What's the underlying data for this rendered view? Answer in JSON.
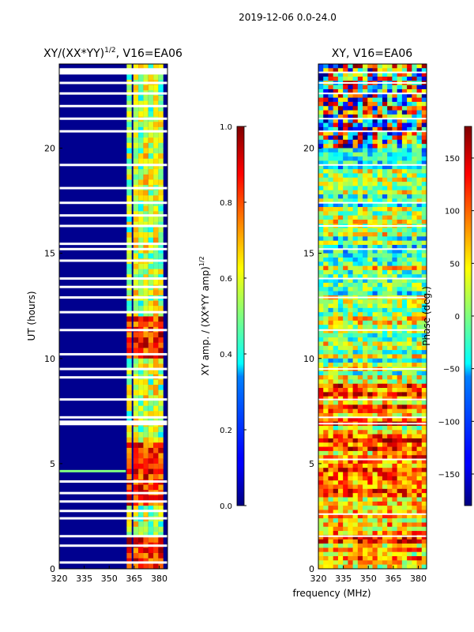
{
  "figure": {
    "suptitle": "2019-12-06 0.0-24.0",
    "xlabel": "frequency (MHz)"
  },
  "chart_data": [
    {
      "type": "heatmap",
      "title_main": "XY/(XX*YY)",
      "title_sup": "1/2",
      "title_rest": ", V16=EA06",
      "ylabel": "UT (hours)",
      "xlim": [
        320,
        385
      ],
      "ylim": [
        0,
        24
      ],
      "xticks": [
        "320",
        "335",
        "350",
        "365",
        "380"
      ],
      "xtick_values": [
        320,
        335,
        350,
        365,
        380
      ],
      "yticks": [
        "0",
        "5",
        "10",
        "15",
        "20"
      ],
      "ytick_values": [
        0,
        5,
        10,
        15,
        20
      ],
      "colorbar": {
        "label_main": "XY amp. / (XX*YY amp)",
        "label_sup": "1/2",
        "range": [
          0.0,
          1.0
        ],
        "ticks": [
          "0.0",
          "0.2",
          "0.4",
          "0.6",
          "0.8",
          "1.0"
        ],
        "tick_values": [
          0,
          0.2,
          0.4,
          0.6,
          0.8,
          1.0
        ],
        "colormap": "jet"
      },
      "band_columns_mhz": [
        362,
        366,
        369,
        372,
        375,
        378,
        381
      ],
      "flagged_hours": [
        0.3,
        1.1,
        1.55,
        2.4,
        2.75,
        3.2,
        3.6,
        4.15,
        6.9,
        7.2,
        8.05,
        9.1,
        9.5,
        10.2,
        11.35,
        12.2,
        12.9,
        13.4,
        13.8,
        14.65,
        15.2,
        15.45,
        16.3,
        16.8,
        17.4,
        18.1,
        19.2,
        20.8,
        21.4,
        22.0,
        22.6,
        23.1,
        23.6
      ]
    },
    {
      "type": "heatmap",
      "title_main": "XY, V16=EA06",
      "ylabel": "",
      "xlim": [
        320,
        385
      ],
      "ylim": [
        0,
        24
      ],
      "xticks": [
        "320",
        "335",
        "350",
        "365",
        "380"
      ],
      "xtick_values": [
        320,
        335,
        350,
        365,
        380
      ],
      "yticks": [
        "0",
        "5",
        "10",
        "15",
        "20"
      ],
      "ytick_values": [
        0,
        5,
        10,
        15,
        20
      ],
      "colorbar": {
        "label_main": "Phase (deg.)",
        "range": [
          -180,
          180
        ],
        "ticks": [
          "−150",
          "−100",
          "−50",
          "0",
          "50",
          "100",
          "150"
        ],
        "tick_values": [
          -150,
          -100,
          -50,
          0,
          50,
          100,
          150
        ],
        "colormap": "jet"
      },
      "flagged_hours": [
        1.55,
        2.6,
        5.2,
        6.9,
        7.2,
        8.05,
        9.5,
        11.35,
        12.9,
        13.8,
        15.2,
        16.3,
        17.4,
        19.2,
        20.8,
        21.4,
        22.6,
        23.1,
        23.6
      ]
    }
  ]
}
